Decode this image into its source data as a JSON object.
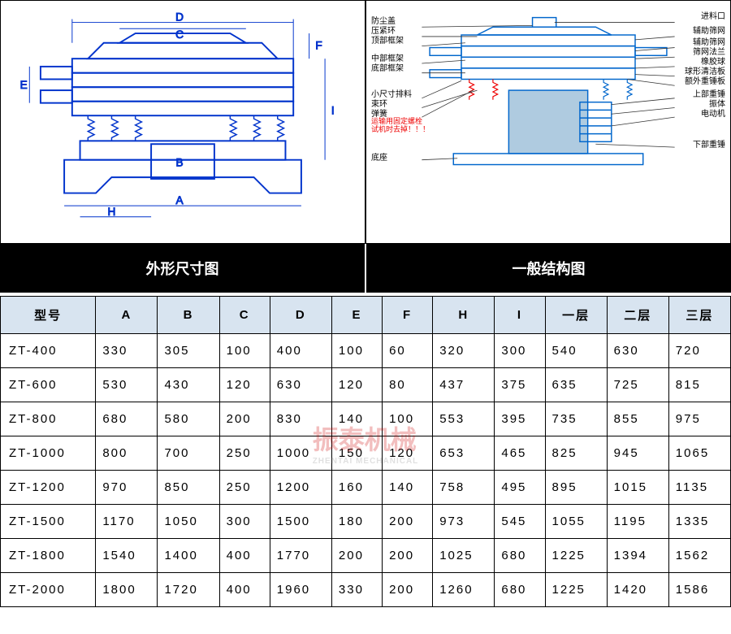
{
  "labels": {
    "left": "外形尺寸图",
    "right": "一般结构图"
  },
  "watermark": {
    "text": "振泰机械",
    "sub": "ZHENTAI MECHANICAL"
  },
  "leftDiag": {
    "dims": [
      "A",
      "B",
      "C",
      "D",
      "E",
      "F",
      "H",
      "I"
    ],
    "stroke": "#0033cc"
  },
  "rightDiag": {
    "stroke": "#0066cc",
    "labelsLeft": [
      "防尘盖",
      "压紧环",
      "顶部框架",
      "中部框架",
      "底部框架",
      "小尺寸排料",
      "束环",
      "弹簧",
      "底座"
    ],
    "labelsRight": [
      "进料口",
      "辅助筛网",
      "辅助筛网",
      "筛网法兰",
      "橡胶球",
      "球形清洁板",
      "额外重锤板",
      "上部重锤",
      "振体",
      "电动机",
      "下部重锤"
    ],
    "warning": "运输用固定螺栓\n试机时去掉！！！"
  },
  "table": {
    "headers": [
      "型号",
      "A",
      "B",
      "C",
      "D",
      "E",
      "F",
      "H",
      "I",
      "一层",
      "二层",
      "三层"
    ],
    "rows": [
      [
        "ZT-400",
        "330",
        "305",
        "100",
        "400",
        "100",
        "60",
        "320",
        "300",
        "540",
        "630",
        "720"
      ],
      [
        "ZT-600",
        "530",
        "430",
        "120",
        "630",
        "120",
        "80",
        "437",
        "375",
        "635",
        "725",
        "815"
      ],
      [
        "ZT-800",
        "680",
        "580",
        "200",
        "830",
        "140",
        "100",
        "553",
        "395",
        "735",
        "855",
        "975"
      ],
      [
        "ZT-1000",
        "800",
        "700",
        "250",
        "1000",
        "150",
        "120",
        "653",
        "465",
        "825",
        "945",
        "1065"
      ],
      [
        "ZT-1200",
        "970",
        "850",
        "250",
        "1200",
        "160",
        "140",
        "758",
        "495",
        "895",
        "1015",
        "1135"
      ],
      [
        "ZT-1500",
        "1170",
        "1050",
        "300",
        "1500",
        "180",
        "200",
        "973",
        "545",
        "1055",
        "1195",
        "1335"
      ],
      [
        "ZT-1800",
        "1540",
        "1400",
        "400",
        "1770",
        "200",
        "200",
        "1025",
        "680",
        "1225",
        "1394",
        "1562"
      ],
      [
        "ZT-2000",
        "1800",
        "1720",
        "400",
        "1960",
        "330",
        "200",
        "1260",
        "680",
        "1225",
        "1420",
        "1586"
      ]
    ]
  }
}
